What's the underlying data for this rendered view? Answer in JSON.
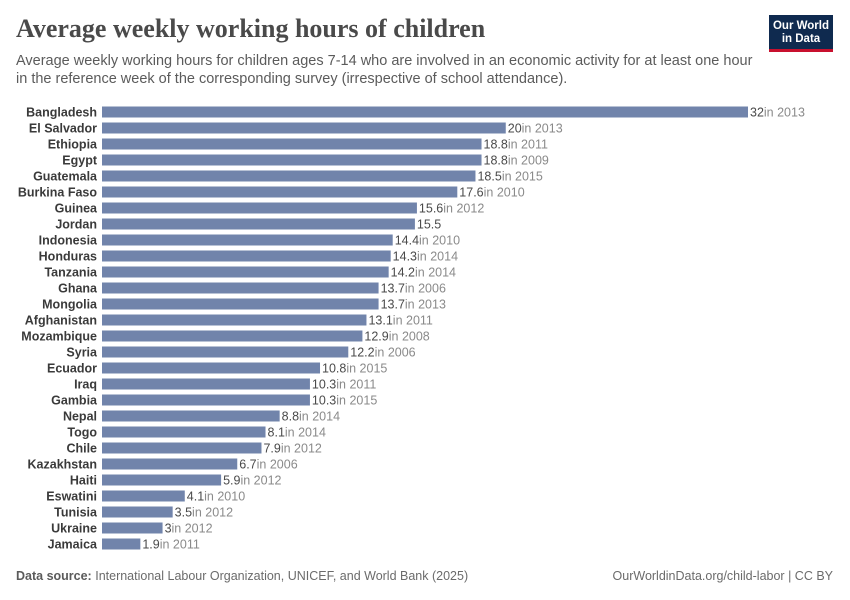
{
  "header": {
    "title": "Average weekly working hours of children",
    "subtitle": "Average weekly working hours for children ages 7-14 who are involved in an economic activity for at least one hour in the reference week of the corresponding survey (irrespective of school attendance).",
    "logo_line1": "Our World",
    "logo_line2": "in Data"
  },
  "footer": {
    "source_label": "Data source:",
    "source_text": "International Labour Organization, UNICEF, and World Bank (2025)",
    "url": "OurWorldinData.org/child-labor | CC BY"
  },
  "colors": {
    "bar": "#7184ab",
    "value_text": "#4a4a4a",
    "year_text": "#8a8a8a",
    "label_text": "#3a3a3a"
  },
  "chart_data": {
    "type": "bar",
    "orientation": "horizontal",
    "categories": [
      "Bangladesh",
      "El Salvador",
      "Ethiopia",
      "Egypt",
      "Guatemala",
      "Burkina Faso",
      "Guinea",
      "Jordan",
      "Indonesia",
      "Honduras",
      "Tanzania",
      "Ghana",
      "Mongolia",
      "Afghanistan",
      "Mozambique",
      "Syria",
      "Ecuador",
      "Iraq",
      "Gambia",
      "Nepal",
      "Togo",
      "Chile",
      "Kazakhstan",
      "Haiti",
      "Eswatini",
      "Tunisia",
      "Ukraine",
      "Jamaica"
    ],
    "values": [
      32,
      20,
      18.8,
      18.8,
      18.5,
      17.6,
      15.6,
      15.5,
      14.4,
      14.3,
      14.2,
      13.7,
      13.7,
      13.1,
      12.9,
      12.2,
      10.8,
      10.3,
      10.3,
      8.8,
      8.1,
      7.9,
      6.7,
      5.9,
      4.1,
      3.5,
      3,
      1.9
    ],
    "value_labels": [
      "32",
      "20",
      "18.8",
      "18.8",
      "18.5",
      "17.6",
      "15.6",
      "15.5",
      "14.4",
      "14.3",
      "14.2",
      "13.7",
      "13.7",
      "13.1",
      "12.9",
      "12.2",
      "10.8",
      "10.3",
      "10.3",
      "8.8",
      "8.1",
      "7.9",
      "6.7",
      "5.9",
      "4.1",
      "3.5",
      "3",
      "1.9"
    ],
    "year_labels": [
      "in 2013",
      "in 2013",
      "in 2011",
      "in 2009",
      "in 2015",
      "in 2010",
      "in 2012",
      "",
      "in 2010",
      "in 2014",
      "in 2014",
      "in 2006",
      "in 2013",
      "in 2011",
      "in 2008",
      "in 2006",
      "in 2015",
      "in 2011",
      "in 2015",
      "in 2014",
      "in 2014",
      "in 2012",
      "in 2006",
      "in 2012",
      "in 2010",
      "in 2012",
      "in 2012",
      "in 2011"
    ],
    "xlim": [
      0,
      32
    ],
    "grid": false,
    "legend": "none"
  }
}
